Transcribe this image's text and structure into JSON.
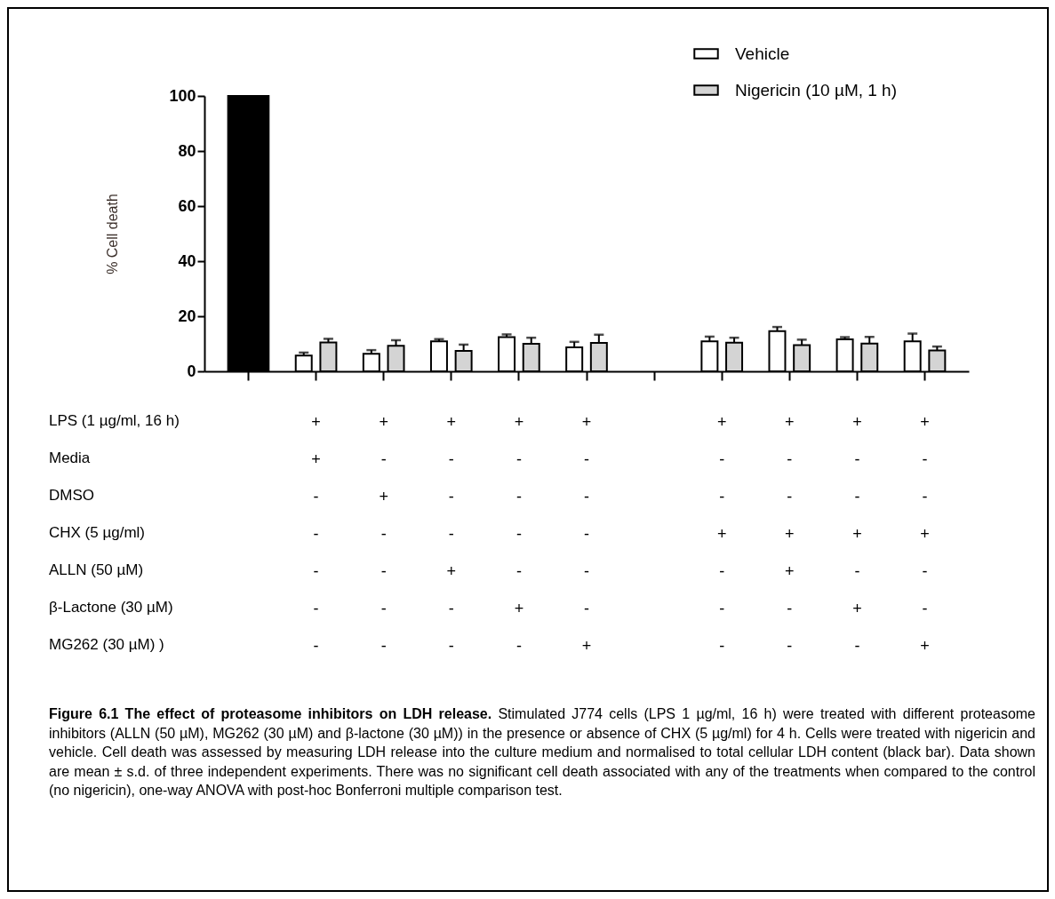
{
  "chart_data": {
    "type": "bar",
    "ylabel": "% Cell death",
    "categories": [
      null,
      "+\n+\n-\n-\n-\n-\n-",
      "+\n-\n+\n-\n-\n-\n-",
      "+\n-\n-\n-\n+\n-\n-",
      "+\n-\n-\n-\n-\n+\n-",
      "+\n-\n-\n-\n-\n-\n+",
      null,
      "+\n-\n-\n+\n-\n-\n-",
      "+\n-\n-\n+\n+\n-\n-",
      "+\n-\n-\n+\n-\n+\n-",
      "+\n-\n-\n+\n-\n-\n+"
    ],
    "series": [
      {
        "color": "#000000",
        "values": [
          100,
          null,
          null,
          null,
          null,
          null,
          null,
          null,
          null,
          null,
          null
        ]
      },
      {
        "name": "Vehicle",
        "color": "#ffffff",
        "values": [
          null,
          5.7,
          6.4,
          10.9,
          12.4,
          8.7,
          null,
          10.9,
          14.6,
          11.6,
          10.9
        ],
        "errors": [
          null,
          [
            5.7,
            6.8
          ],
          [
            6.4,
            7.7
          ],
          [
            10.9,
            11.7
          ],
          [
            12.4,
            13.4
          ],
          [
            8.7,
            10.7
          ],
          null,
          [
            10.9,
            12.6
          ],
          [
            14.6,
            16.1
          ],
          [
            11.6,
            12.4
          ],
          [
            10.9,
            13.7
          ]
        ]
      },
      {
        "name": "Nigericin (10 µM, 1 h)",
        "color": "#d4d4d4",
        "values": [
          null,
          10.5,
          9.3,
          7.4,
          10,
          10.3,
          null,
          10.4,
          9.5,
          10.1,
          7.6
        ],
        "errors": [
          null,
          [
            10.5,
            11.8
          ],
          [
            9.3,
            11.3
          ],
          [
            7.4,
            9.7
          ],
          [
            10,
            12.2
          ],
          [
            10.3,
            13.3
          ],
          null,
          [
            10.4,
            12.2
          ],
          [
            9.5,
            11.5
          ],
          [
            10.1,
            12.5
          ],
          [
            7.6,
            9
          ]
        ]
      }
    ],
    "ylim": [
      0,
      100
    ],
    "yticks": [
      0,
      20,
      40,
      60,
      80,
      100
    ],
    "legend": "top right",
    "annotations": [
      "LPS (1 µg/ml, 16 h)",
      "Media",
      "DMSO",
      "CHX (5 µg/ml)",
      "ALLN (50 µM)",
      "β-Lactone (30 µM)",
      "MG262  (30 µM) )",
      "Figure 6.1 The effect of proteasome inhibitors on LDH release.",
      "Stimulated J774 cells (LPS 1 µg/ml, 16 h) were treated with different proteasome inhibitors (ALLN (50 µM), MG262 (30 µM) and β-lactone (30 µM)) in the presence or absence of CHX (5 µg/ml) for 4 h. Cells were treated with nigericin and vehicle. Cell death was assessed by measuring LDH release into the culture medium and normalised to total cellular LDH content (black bar). Data shown are mean ± s.d. of three independent experiments. There was no significant cell death associated with any of the treatments when compared to the control (no nigericin), one-way ANOVA with post-hoc Bonferroni multiple comparison test."
    ]
  }
}
